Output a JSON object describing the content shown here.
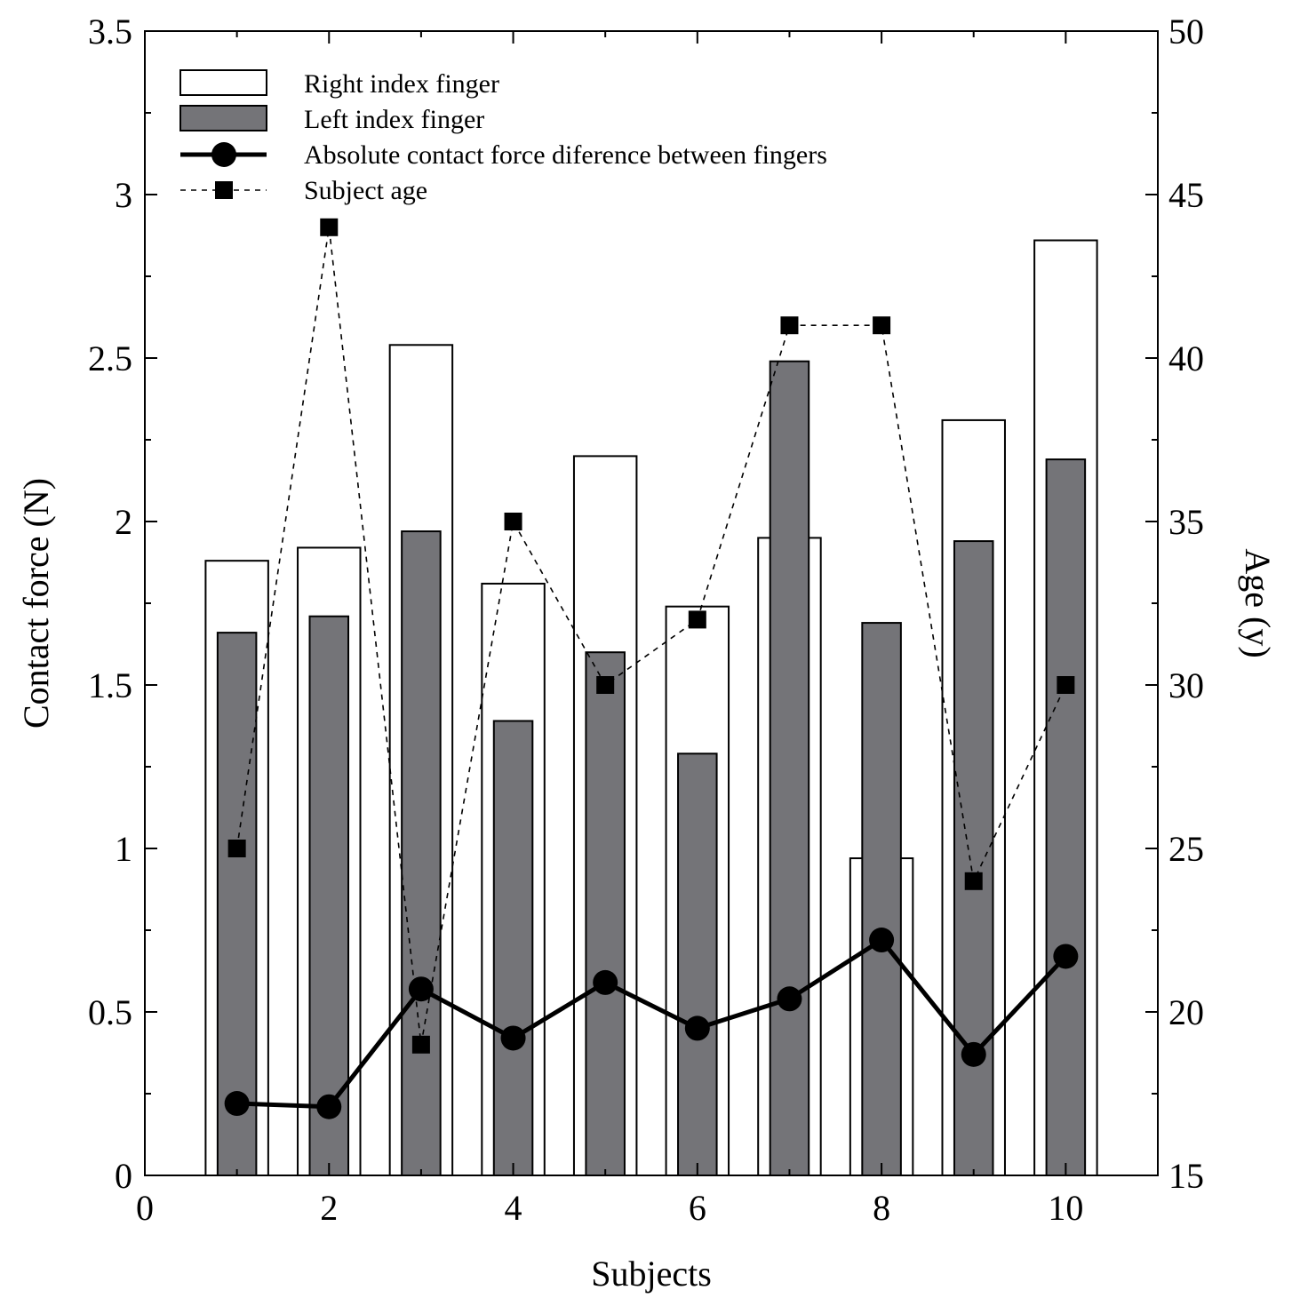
{
  "chart_data": {
    "type": "bar",
    "title": "",
    "xlabel": "Subjects",
    "ylabel": "Contact force (N)",
    "y2label": "Age (y)",
    "xlim": [
      0,
      11
    ],
    "ylim": [
      0,
      3.5
    ],
    "y2lim": [
      15,
      50
    ],
    "x_ticks": [
      "0",
      "2",
      "4",
      "6",
      "8",
      "10"
    ],
    "y_ticks": [
      "0",
      "0.5",
      "1",
      "1.5",
      "2",
      "2.5",
      "3",
      "3.5"
    ],
    "y2_ticks": [
      "15",
      "20",
      "25",
      "30",
      "35",
      "40",
      "45",
      "50"
    ],
    "x": [
      1,
      2,
      3,
      4,
      5,
      6,
      7,
      8,
      9,
      10
    ],
    "legend_position": "top-left",
    "series": [
      {
        "name": "Right index finger",
        "kind": "bar",
        "axis": "left",
        "color": "#ffffff",
        "values": [
          1.88,
          1.92,
          2.54,
          1.81,
          2.2,
          1.74,
          1.95,
          0.97,
          2.31,
          2.86
        ]
      },
      {
        "name": "Left index finger",
        "kind": "bar",
        "axis": "left",
        "color": "#747478",
        "values": [
          1.66,
          1.71,
          1.97,
          1.39,
          1.6,
          1.29,
          2.49,
          1.69,
          1.94,
          2.19
        ]
      },
      {
        "name": "Absolute contact force diference between fingers",
        "kind": "line-circle",
        "axis": "left",
        "color": "#000000",
        "values": [
          0.22,
          0.21,
          0.57,
          0.42,
          0.59,
          0.45,
          0.54,
          0.72,
          0.37,
          0.67
        ]
      },
      {
        "name": "Subject age",
        "kind": "dashed-square",
        "axis": "right",
        "color": "#000000",
        "values": [
          25,
          44,
          19,
          35,
          30,
          32,
          41,
          41,
          24,
          30
        ]
      }
    ]
  }
}
